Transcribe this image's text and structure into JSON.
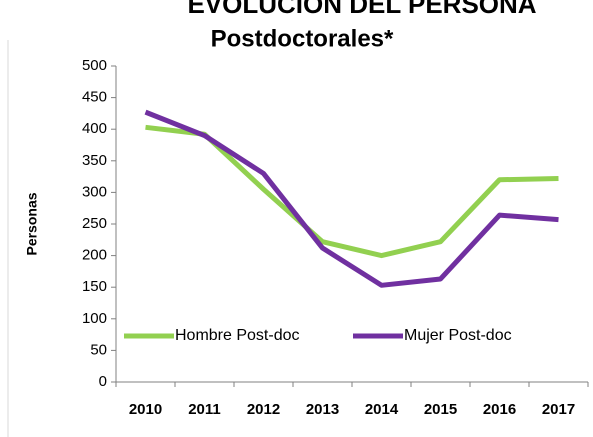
{
  "chart_data": {
    "type": "line",
    "title": "EVOLUCIÓN DEL PERSONA",
    "subtitle": "Postdoctorales*",
    "y_label": "Personas",
    "categories": [
      "2010",
      "2011",
      "2012",
      "2013",
      "2014",
      "2015",
      "2016",
      "2017"
    ],
    "series": [
      {
        "name": "Hombre Post-doc",
        "color": "#92d050",
        "values": [
          403,
          392,
          305,
          222,
          200,
          222,
          320,
          322
        ]
      },
      {
        "name": "Mujer Post-doc",
        "color": "#7030a0",
        "values": [
          427,
          390,
          330,
          212,
          153,
          163,
          264,
          257
        ]
      }
    ],
    "ylim": [
      0,
      500
    ],
    "yticks": [
      0,
      50,
      100,
      150,
      200,
      250,
      300,
      350,
      400,
      450,
      500
    ],
    "grid": false,
    "legend": "bottom-left"
  }
}
